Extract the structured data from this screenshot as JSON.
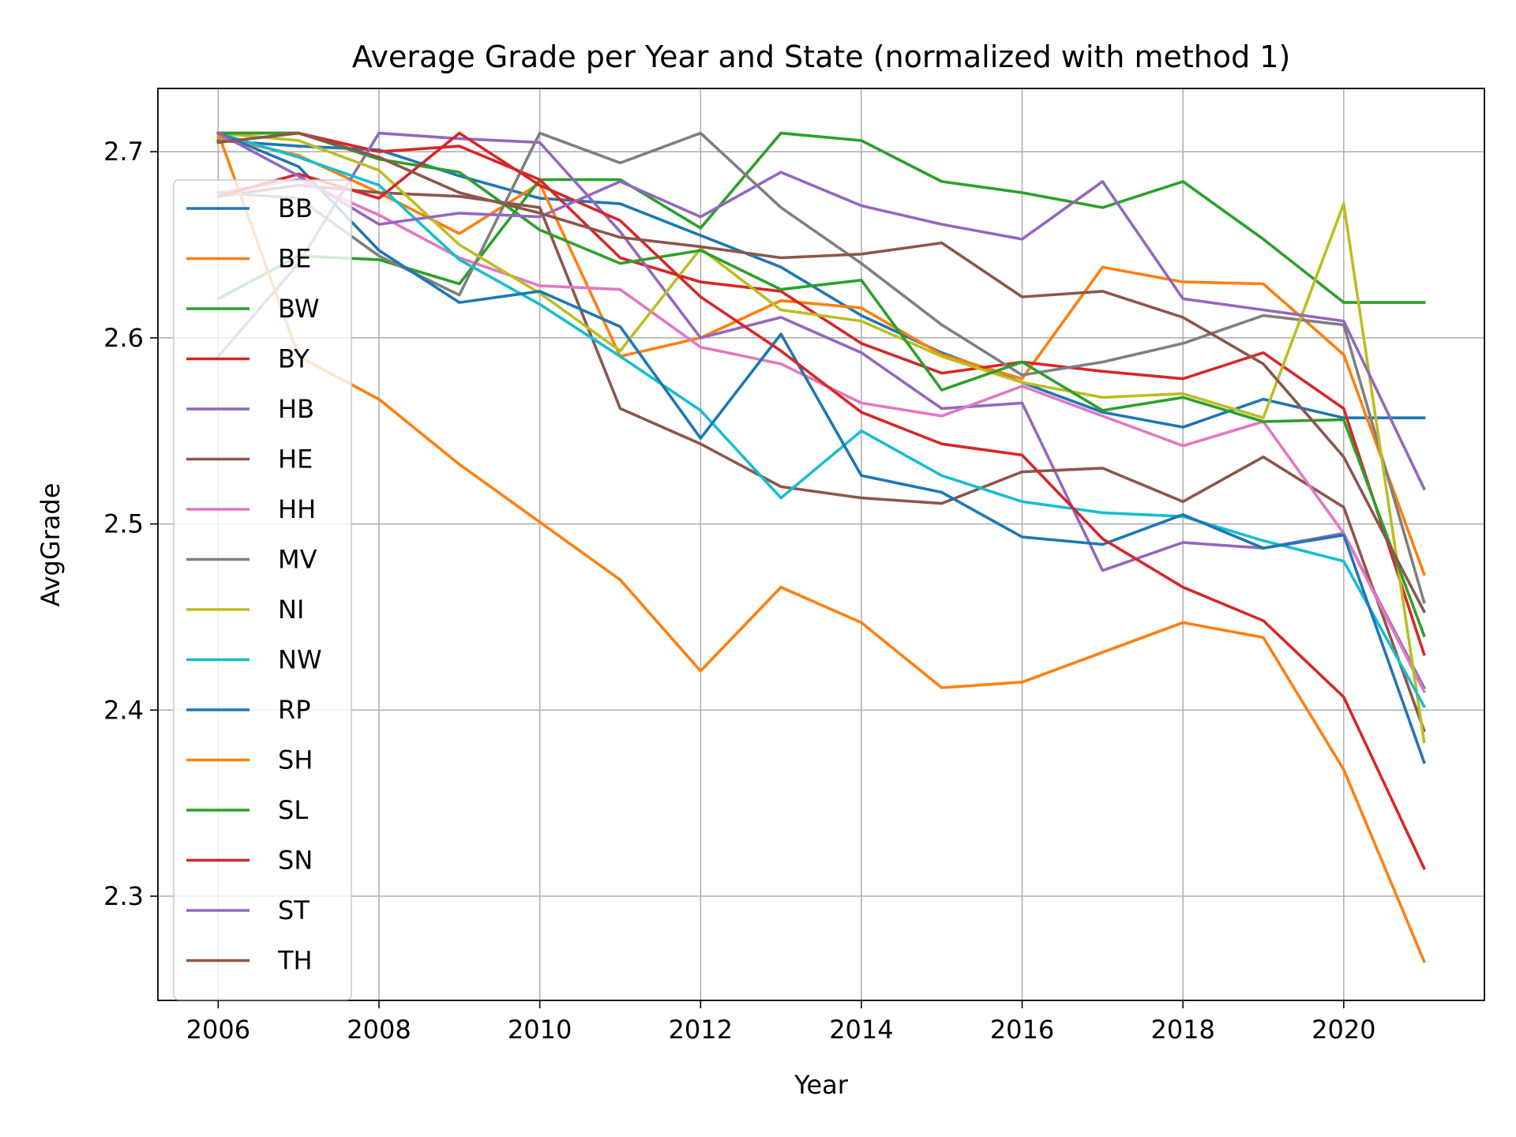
{
  "chart_data": {
    "type": "line",
    "title": "Average Grade per Year and State (normalized with method 1)",
    "xlabel": "Year",
    "ylabel": "AvgGrade",
    "xlim": [
      2005.25,
      2021.75
    ],
    "ylim": [
      2.244,
      2.734
    ],
    "xticks": [
      2006,
      2008,
      2010,
      2012,
      2014,
      2016,
      2018,
      2020
    ],
    "yticks": [
      2.3,
      2.4,
      2.5,
      2.6,
      2.7
    ],
    "grid": true,
    "legend_position": "left",
    "x": [
      2006,
      2007,
      2008,
      2009,
      2010,
      2011,
      2012,
      2013,
      2014,
      2015,
      2016,
      2017,
      2018,
      2019,
      2020,
      2021
    ],
    "series": [
      {
        "name": "BB",
        "color": "#1f77b4",
        "values": [
          2.706,
          2.703,
          2.701,
          2.687,
          2.675,
          2.672,
          2.655,
          2.638,
          2.612,
          2.592,
          2.576,
          2.56,
          2.552,
          2.567,
          2.557,
          2.557
        ]
      },
      {
        "name": "BE",
        "color": "#ff7f0e",
        "values": [
          2.708,
          2.698,
          2.678,
          2.656,
          2.683,
          2.59,
          2.6,
          2.62,
          2.616,
          2.591,
          2.578,
          2.638,
          2.63,
          2.629,
          2.591,
          2.473
        ]
      },
      {
        "name": "BW",
        "color": "#2ca02c",
        "values": [
          2.621,
          2.644,
          2.642,
          2.629,
          2.685,
          2.685,
          2.659,
          2.71,
          2.706,
          2.684,
          2.678,
          2.67,
          2.684,
          2.653,
          2.619,
          2.619
        ]
      },
      {
        "name": "BY",
        "color": "#d62728",
        "values": [
          2.71,
          2.71,
          2.7,
          2.703,
          2.685,
          2.643,
          2.63,
          2.625,
          2.597,
          2.581,
          2.587,
          2.582,
          2.578,
          2.592,
          2.562,
          2.43
        ]
      },
      {
        "name": "HB",
        "color": "#9467bd",
        "values": [
          2.59,
          2.64,
          2.71,
          2.707,
          2.705,
          2.657,
          2.6,
          2.611,
          2.592,
          2.562,
          2.565,
          2.475,
          2.49,
          2.487,
          2.495,
          2.412
        ]
      },
      {
        "name": "HE",
        "color": "#8c564b",
        "values": [
          2.676,
          2.682,
          2.678,
          2.676,
          2.67,
          2.562,
          2.543,
          2.52,
          2.514,
          2.511,
          2.528,
          2.53,
          2.512,
          2.536,
          2.509,
          2.389
        ]
      },
      {
        "name": "HH",
        "color": "#e377c2",
        "values": [
          2.678,
          2.685,
          2.666,
          2.643,
          2.628,
          2.626,
          2.595,
          2.586,
          2.565,
          2.558,
          2.574,
          2.558,
          2.542,
          2.555,
          2.495,
          2.41
        ]
      },
      {
        "name": "MV",
        "color": "#7f7f7f",
        "values": [
          2.678,
          2.675,
          2.644,
          2.623,
          2.71,
          2.694,
          2.71,
          2.67,
          2.64,
          2.607,
          2.58,
          2.587,
          2.597,
          2.612,
          2.607,
          2.458
        ]
      },
      {
        "name": "NI",
        "color": "#bcbd22",
        "values": [
          2.71,
          2.706,
          2.69,
          2.65,
          2.624,
          2.593,
          2.648,
          2.615,
          2.609,
          2.59,
          2.576,
          2.568,
          2.57,
          2.557,
          2.672,
          2.383
        ]
      },
      {
        "name": "NW",
        "color": "#17becf",
        "values": [
          2.71,
          2.697,
          2.682,
          2.642,
          2.618,
          2.59,
          2.561,
          2.514,
          2.55,
          2.526,
          2.512,
          2.506,
          2.504,
          2.491,
          2.48,
          2.402
        ]
      },
      {
        "name": "RP",
        "color": "#1f77b4",
        "values": [
          2.71,
          2.692,
          2.647,
          2.619,
          2.625,
          2.606,
          2.546,
          2.602,
          2.526,
          2.517,
          2.493,
          2.489,
          2.505,
          2.487,
          2.494,
          2.372
        ]
      },
      {
        "name": "SH",
        "color": "#ff7f0e",
        "values": [
          2.71,
          2.59,
          2.567,
          2.532,
          2.501,
          2.47,
          2.421,
          2.466,
          2.447,
          2.412,
          2.415,
          2.431,
          2.447,
          2.439,
          2.368,
          2.265
        ]
      },
      {
        "name": "SL",
        "color": "#2ca02c",
        "values": [
          2.71,
          2.71,
          2.696,
          2.689,
          2.658,
          2.64,
          2.647,
          2.626,
          2.631,
          2.572,
          2.587,
          2.561,
          2.568,
          2.555,
          2.556,
          2.44
        ]
      },
      {
        "name": "SN",
        "color": "#d62728",
        "values": [
          2.676,
          2.688,
          2.675,
          2.71,
          2.682,
          2.663,
          2.622,
          2.593,
          2.56,
          2.543,
          2.537,
          2.492,
          2.466,
          2.448,
          2.407,
          2.315
        ]
      },
      {
        "name": "ST",
        "color": "#9467bd",
        "values": [
          2.71,
          2.687,
          2.661,
          2.667,
          2.665,
          2.684,
          2.665,
          2.689,
          2.671,
          2.661,
          2.653,
          2.684,
          2.621,
          2.615,
          2.609,
          2.519
        ]
      },
      {
        "name": "TH",
        "color": "#8c564b",
        "values": [
          2.705,
          2.71,
          2.697,
          2.678,
          2.667,
          2.654,
          2.649,
          2.643,
          2.645,
          2.651,
          2.622,
          2.625,
          2.611,
          2.586,
          2.536,
          2.453
        ]
      }
    ]
  }
}
